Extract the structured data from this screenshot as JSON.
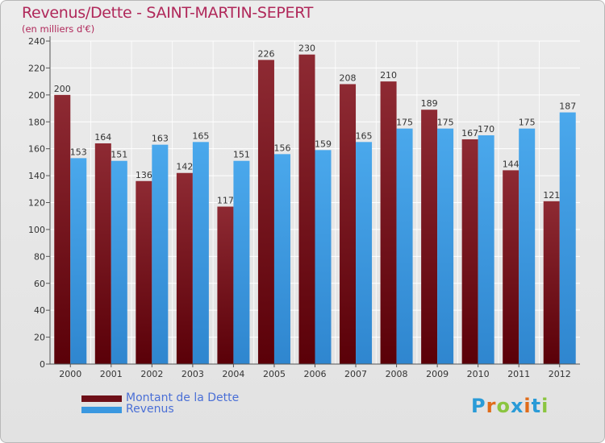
{
  "title": "Revenus/Dette - SAINT-MARTIN-SEPERT",
  "subtitle": "(en milliers d'€)",
  "logo_text": "Proxiti",
  "colors": {
    "debt": "#7a1520",
    "revenue": "#3a98e0",
    "title": "#b0285a",
    "legend_text": "#4a6fd6"
  },
  "chart_data": {
    "type": "bar",
    "categories": [
      "2000",
      "2001",
      "2002",
      "2003",
      "2004",
      "2005",
      "2006",
      "2007",
      "2008",
      "2009",
      "2010",
      "2011",
      "2012"
    ],
    "series": [
      {
        "name": "Montant de la Dette",
        "values": [
          200,
          164,
          136,
          142,
          117,
          226,
          230,
          208,
          210,
          189,
          167,
          144,
          121
        ]
      },
      {
        "name": "Revenus",
        "values": [
          153,
          151,
          163,
          165,
          151,
          156,
          159,
          165,
          175,
          175,
          170,
          175,
          187
        ]
      }
    ],
    "ylim": [
      0,
      240
    ],
    "yticks": [
      0,
      20,
      40,
      60,
      80,
      100,
      120,
      140,
      160,
      180,
      200,
      220,
      240
    ],
    "grid": true,
    "legend_position": "bottom-left"
  }
}
